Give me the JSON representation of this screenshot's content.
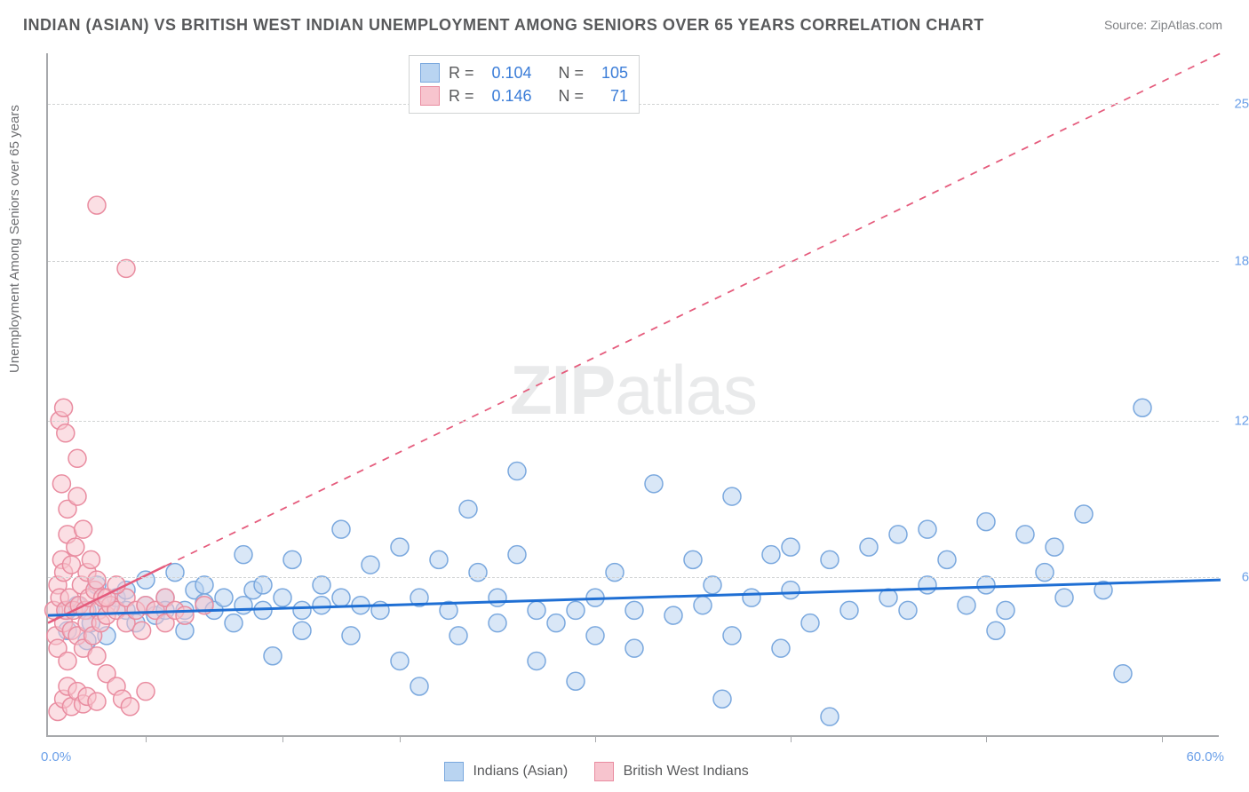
{
  "title": "INDIAN (ASIAN) VS BRITISH WEST INDIAN UNEMPLOYMENT AMONG SENIORS OVER 65 YEARS CORRELATION CHART",
  "source": "Source: ZipAtlas.com",
  "watermark_zip": "ZIP",
  "watermark_atlas": "atlas",
  "chart": {
    "type": "scatter",
    "ylabel": "Unemployment Among Seniors over 65 years",
    "xlim": [
      0,
      60
    ],
    "ylim": [
      0,
      27
    ],
    "x_origin_label": "0.0%",
    "x_end_label": "60.0%",
    "y_ticks": [
      {
        "value": 6.3,
        "label": "6.3%"
      },
      {
        "value": 12.5,
        "label": "12.5%"
      },
      {
        "value": 18.8,
        "label": "18.8%"
      },
      {
        "value": 25.0,
        "label": "25.0%"
      }
    ],
    "x_tick_positions": [
      5,
      12,
      18,
      28,
      38,
      48,
      57
    ],
    "background_color": "#ffffff",
    "grid_color": "#d1d3d4",
    "axis_color": "#a7a9ac",
    "marker_radius": 10,
    "marker_stroke_width": 1.5,
    "series": [
      {
        "name": "Indians (Asian)",
        "fill": "#b9d4f1",
        "stroke": "#7aa8de",
        "fill_opacity": 0.55,
        "R": "0.104",
        "N": "105",
        "trend": {
          "x1": 0,
          "y1": 4.8,
          "x2": 60,
          "y2": 6.2,
          "solid_end_x": 60,
          "color": "#1f6fd4",
          "width": 3
        },
        "points": [
          [
            1,
            5
          ],
          [
            1,
            4.2
          ],
          [
            1.5,
            5.2
          ],
          [
            2,
            5
          ],
          [
            2,
            3.8
          ],
          [
            2.2,
            4.5
          ],
          [
            2.5,
            6
          ],
          [
            3,
            5.2
          ],
          [
            3,
            4
          ],
          [
            3.5,
            5.5
          ],
          [
            4,
            5
          ],
          [
            4,
            5.8
          ],
          [
            4.5,
            4.5
          ],
          [
            5,
            5.2
          ],
          [
            5,
            6.2
          ],
          [
            5.5,
            4.8
          ],
          [
            6,
            5.5
          ],
          [
            6,
            5
          ],
          [
            6.5,
            6.5
          ],
          [
            7,
            5
          ],
          [
            7,
            4.2
          ],
          [
            7.5,
            5.8
          ],
          [
            8,
            5.3
          ],
          [
            8,
            6
          ],
          [
            8.5,
            5
          ],
          [
            9,
            5.5
          ],
          [
            9.5,
            4.5
          ],
          [
            10,
            5.2
          ],
          [
            10,
            7.2
          ],
          [
            10.5,
            5.8
          ],
          [
            11,
            5
          ],
          [
            11,
            6
          ],
          [
            11.5,
            3.2
          ],
          [
            12,
            5.5
          ],
          [
            12.5,
            7
          ],
          [
            13,
            5
          ],
          [
            13,
            4.2
          ],
          [
            14,
            6
          ],
          [
            14,
            5.2
          ],
          [
            15,
            8.2
          ],
          [
            15,
            5.5
          ],
          [
            15.5,
            4
          ],
          [
            16,
            5.2
          ],
          [
            16.5,
            6.8
          ],
          [
            17,
            5
          ],
          [
            18,
            7.5
          ],
          [
            18,
            3
          ],
          [
            19,
            5.5
          ],
          [
            19,
            2
          ],
          [
            20,
            7
          ],
          [
            20.5,
            5
          ],
          [
            21,
            4
          ],
          [
            21.5,
            9
          ],
          [
            22,
            6.5
          ],
          [
            23,
            5.5
          ],
          [
            23,
            4.5
          ],
          [
            24,
            10.5
          ],
          [
            24,
            7.2
          ],
          [
            25,
            5
          ],
          [
            25,
            3
          ],
          [
            26,
            4.5
          ],
          [
            27,
            5
          ],
          [
            27,
            2.2
          ],
          [
            28,
            5.5
          ],
          [
            28,
            4
          ],
          [
            29,
            6.5
          ],
          [
            30,
            5
          ],
          [
            30,
            3.5
          ],
          [
            31,
            10
          ],
          [
            32,
            4.8
          ],
          [
            33,
            7
          ],
          [
            33.5,
            5.2
          ],
          [
            34,
            6
          ],
          [
            35,
            9.5
          ],
          [
            35,
            4
          ],
          [
            36,
            5.5
          ],
          [
            37,
            7.2
          ],
          [
            37.5,
            3.5
          ],
          [
            38,
            5.8
          ],
          [
            38,
            7.5
          ],
          [
            39,
            4.5
          ],
          [
            40,
            7
          ],
          [
            41,
            5
          ],
          [
            42,
            7.5
          ],
          [
            43,
            5.5
          ],
          [
            43.5,
            8
          ],
          [
            44,
            5
          ],
          [
            45,
            8.2
          ],
          [
            45,
            6
          ],
          [
            46,
            7
          ],
          [
            47,
            5.2
          ],
          [
            48,
            8.5
          ],
          [
            48,
            6
          ],
          [
            49,
            5
          ],
          [
            50,
            8
          ],
          [
            51,
            6.5
          ],
          [
            52,
            5.5
          ],
          [
            53,
            8.8
          ],
          [
            54,
            5.8
          ],
          [
            55,
            2.5
          ],
          [
            56,
            13
          ],
          [
            40,
            0.8
          ],
          [
            48.5,
            4.2
          ],
          [
            51.5,
            7.5
          ],
          [
            34.5,
            1.5
          ]
        ]
      },
      {
        "name": "British West Indians",
        "fill": "#f7c4ce",
        "stroke": "#e98ca0",
        "fill_opacity": 0.55,
        "R": "0.146",
        "N": "71",
        "trend": {
          "x1": 0,
          "y1": 4.5,
          "x2": 60,
          "y2": 27,
          "solid_end_x": 6,
          "color": "#e55b7c",
          "width": 2.5
        },
        "points": [
          [
            0.3,
            5
          ],
          [
            0.4,
            4
          ],
          [
            0.5,
            6
          ],
          [
            0.5,
            3.5
          ],
          [
            0.6,
            5.5
          ],
          [
            0.7,
            7
          ],
          [
            0.8,
            4.5
          ],
          [
            0.8,
            6.5
          ],
          [
            0.9,
            5
          ],
          [
            1,
            8
          ],
          [
            1,
            3
          ],
          [
            1,
            9
          ],
          [
            1.1,
            5.5
          ],
          [
            1.2,
            4.2
          ],
          [
            1.2,
            6.8
          ],
          [
            1.3,
            5
          ],
          [
            1.4,
            7.5
          ],
          [
            1.5,
            4
          ],
          [
            1.5,
            9.5
          ],
          [
            1.6,
            5.2
          ],
          [
            1.7,
            6
          ],
          [
            1.8,
            3.5
          ],
          [
            1.8,
            8.2
          ],
          [
            1.9,
            5
          ],
          [
            2,
            4.5
          ],
          [
            2,
            6.5
          ],
          [
            2.1,
            5.5
          ],
          [
            2.2,
            7
          ],
          [
            2.3,
            4
          ],
          [
            2.4,
            5.8
          ],
          [
            2.5,
            3.2
          ],
          [
            2.5,
            6.2
          ],
          [
            2.6,
            5
          ],
          [
            2.7,
            4.5
          ],
          [
            2.8,
            5.5
          ],
          [
            3,
            2.5
          ],
          [
            3,
            4.8
          ],
          [
            3.2,
            5.2
          ],
          [
            3.5,
            2
          ],
          [
            3.5,
            5
          ],
          [
            3.8,
            1.5
          ],
          [
            4,
            4.5
          ],
          [
            4,
            5.5
          ],
          [
            4.2,
            1.2
          ],
          [
            4.5,
            5
          ],
          [
            4.8,
            4.2
          ],
          [
            5,
            1.8
          ],
          [
            5,
            5.2
          ],
          [
            5.5,
            5
          ],
          [
            6,
            4.5
          ],
          [
            6,
            5.5
          ],
          [
            6.5,
            5
          ],
          [
            7,
            4.8
          ],
          [
            8,
            5.2
          ],
          [
            0.5,
            1
          ],
          [
            0.8,
            1.5
          ],
          [
            1,
            2
          ],
          [
            1.2,
            1.2
          ],
          [
            1.5,
            1.8
          ],
          [
            1.8,
            1.3
          ],
          [
            2,
            1.6
          ],
          [
            2.5,
            1.4
          ],
          [
            0.6,
            12.5
          ],
          [
            0.8,
            13
          ],
          [
            2.5,
            21
          ],
          [
            4,
            18.5
          ],
          [
            0.7,
            10
          ],
          [
            1.5,
            11
          ],
          [
            0.9,
            12
          ],
          [
            3,
            5.5
          ],
          [
            3.5,
            6
          ]
        ]
      }
    ]
  },
  "rn_legend_label_R": "R =",
  "rn_legend_label_N": "N =",
  "bottom_legend": [
    {
      "label": "Indians (Asian)",
      "fill": "#b9d4f1",
      "stroke": "#7aa8de"
    },
    {
      "label": "British West Indians",
      "fill": "#f7c4ce",
      "stroke": "#e98ca0"
    }
  ]
}
